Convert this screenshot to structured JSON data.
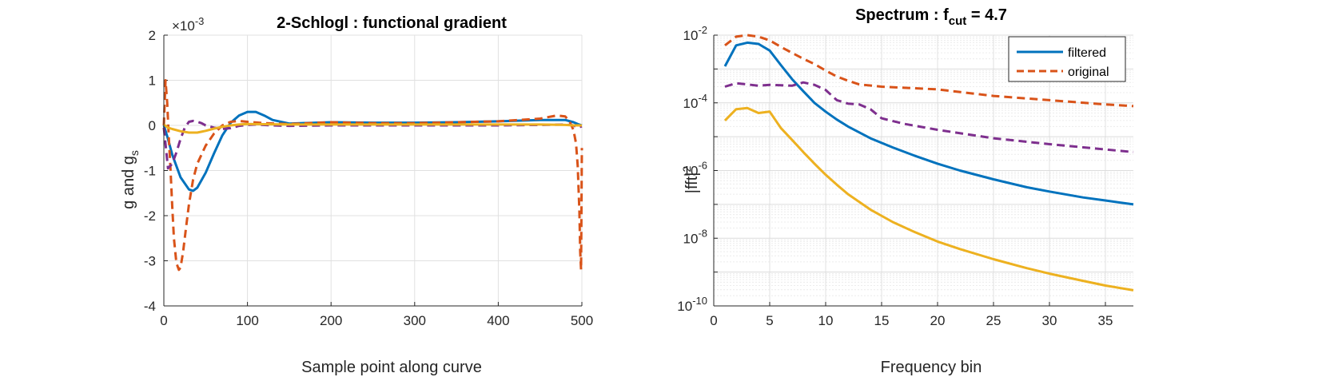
{
  "chart_data": [
    {
      "type": "line",
      "title": "2-Schlogl : functional gradient",
      "xlabel": "Sample point along curve",
      "ylabel": "g and g",
      "ylabel_sub": "s",
      "exponent_label": "×10",
      "exponent_value": "-3",
      "xlim": [
        0,
        500
      ],
      "ylim": [
        -4,
        2
      ],
      "xticks": [
        0,
        100,
        200,
        300,
        400,
        500
      ],
      "xtick_labels": [
        "0",
        "100",
        "200",
        "300",
        "400",
        "500"
      ],
      "yticks": [
        -4,
        -3,
        -2,
        -1,
        0,
        1,
        2
      ],
      "ytick_labels": [
        "-4",
        "-3",
        "-2",
        "-1",
        "0",
        "1",
        "2"
      ],
      "grid": true,
      "series": [
        {
          "color": "#0072BD",
          "style": "solid",
          "x": [
            0,
            5,
            10,
            20,
            30,
            35,
            40,
            50,
            60,
            70,
            80,
            90,
            100,
            110,
            120,
            130,
            150,
            200,
            250,
            300,
            350,
            400,
            450,
            480,
            490,
            495,
            500
          ],
          "y": [
            0,
            -0.3,
            -0.65,
            -1.15,
            -1.42,
            -1.45,
            -1.38,
            -1.05,
            -0.62,
            -0.22,
            0.06,
            0.22,
            0.3,
            0.3,
            0.22,
            0.12,
            0.04,
            0.07,
            0.06,
            0.06,
            0.07,
            0.09,
            0.12,
            0.12,
            0.07,
            0.03,
            0
          ]
        },
        {
          "color": "#D95319",
          "style": "dashed",
          "x": [
            0,
            2,
            4,
            6,
            8,
            10,
            12,
            15,
            18,
            20,
            23,
            27,
            30,
            35,
            40,
            50,
            60,
            70,
            80,
            90,
            100,
            120,
            150,
            200,
            250,
            300,
            350,
            400,
            450,
            470,
            480,
            485,
            490,
            493,
            495,
            497,
            498,
            499,
            500
          ],
          "y": [
            0,
            1.0,
            0.5,
            -0.3,
            -1.0,
            -1.8,
            -2.5,
            -3.05,
            -3.2,
            -3.15,
            -2.8,
            -2.2,
            -1.75,
            -1.2,
            -0.85,
            -0.45,
            -0.18,
            0.0,
            0.08,
            0.1,
            0.08,
            0.05,
            0.03,
            0.07,
            0.05,
            0.05,
            0.07,
            0.09,
            0.15,
            0.22,
            0.2,
            0.1,
            -0.1,
            -0.4,
            -0.9,
            -1.9,
            -2.8,
            -3.2,
            -0.5
          ]
        },
        {
          "color": "#7E2F8E",
          "style": "dashed",
          "x": [
            0,
            5,
            10,
            15,
            20,
            25,
            30,
            35,
            40,
            45,
            50,
            60,
            70,
            80,
            90,
            100,
            110,
            130,
            150,
            200,
            300,
            400,
            450,
            480,
            490,
            495,
            500
          ],
          "y": [
            -0.05,
            -0.95,
            -0.85,
            -0.6,
            -0.3,
            -0.05,
            0.08,
            0.1,
            0.08,
            0.05,
            0.0,
            -0.05,
            -0.08,
            -0.06,
            -0.01,
            0.01,
            0.02,
            0.0,
            -0.01,
            0.0,
            0.0,
            0.0,
            0.01,
            0.02,
            0.0,
            -0.05,
            -0.02
          ]
        },
        {
          "color": "#EDB120",
          "style": "solid",
          "x": [
            0,
            5,
            10,
            20,
            30,
            40,
            50,
            60,
            70,
            80,
            90,
            100,
            150,
            200,
            300,
            400,
            450,
            480,
            490,
            500
          ],
          "y": [
            0.02,
            -0.05,
            -0.08,
            -0.13,
            -0.16,
            -0.16,
            -0.12,
            -0.07,
            -0.03,
            0.0,
            0.02,
            0.03,
            0.02,
            0.02,
            0.02,
            0.02,
            0.02,
            0.01,
            0.0,
            0
          ]
        }
      ]
    },
    {
      "type": "line",
      "title": "Spectrum : f",
      "title_sub": "cut",
      "title_suffix": " = 4.7",
      "xlabel": "Frequency bin",
      "ylabel": "|fft|",
      "ylabel_sup": "2",
      "yscale": "log",
      "xlim": [
        0,
        37.5
      ],
      "ylim": [
        1e-10,
        0.01
      ],
      "xticks": [
        0,
        5,
        10,
        15,
        20,
        25,
        30,
        35
      ],
      "xtick_labels": [
        "0",
        "5",
        "10",
        "15",
        "20",
        "25",
        "30",
        "35"
      ],
      "yticks": [
        -10,
        -8,
        -6,
        -4,
        -2
      ],
      "ytick_base": "10",
      "grid": true,
      "minor_grid": true,
      "legend": {
        "position": "top-right",
        "entries": [
          "filtered",
          "original"
        ]
      },
      "series": [
        {
          "name": "filtered",
          "color": "#0072BD",
          "style": "solid",
          "x": [
            1,
            2,
            3,
            4,
            5,
            6,
            7,
            8,
            9,
            10,
            11,
            12,
            14,
            16,
            18,
            20,
            22,
            25,
            28,
            30,
            33,
            35,
            37.5
          ],
          "y": [
            0.0012,
            0.005,
            0.006,
            0.0055,
            0.0035,
            0.0013,
            0.0005,
            0.00022,
            0.0001,
            5.5e-05,
            3.2e-05,
            2e-05,
            9e-06,
            4.8e-06,
            2.7e-06,
            1.6e-06,
            1e-06,
            5.5e-07,
            3.2e-07,
            2.4e-07,
            1.6e-07,
            1.3e-07,
            1e-07
          ]
        },
        {
          "name": "original",
          "color": "#D95319",
          "style": "dashed",
          "x": [
            1,
            2,
            3,
            4,
            5,
            6,
            7,
            8,
            9,
            10,
            11,
            12,
            13,
            15,
            20,
            25,
            30,
            35,
            37.5
          ],
          "y": [
            0.005,
            0.009,
            0.01,
            0.009,
            0.007,
            0.0045,
            0.003,
            0.002,
            0.0014,
            0.0009,
            0.0006,
            0.00045,
            0.00035,
            0.0003,
            0.00025,
            0.00016,
            0.00012,
            9e-05,
            8e-05
          ]
        },
        {
          "color": "#7E2F8E",
          "style": "dashed",
          "x": [
            1,
            2,
            3,
            4,
            5,
            6,
            7,
            8,
            9,
            10,
            11,
            12,
            13,
            14,
            15,
            17,
            20,
            25,
            30,
            35,
            37.5
          ],
          "y": [
            0.0003,
            0.00038,
            0.00035,
            0.00032,
            0.00034,
            0.00033,
            0.00032,
            0.0004,
            0.00034,
            0.00024,
            0.00012,
            9.5e-05,
            9e-05,
            6.5e-05,
            3.5e-05,
            2.4e-05,
            1.6e-05,
            9e-06,
            6e-06,
            4.2e-06,
            3.5e-06
          ]
        },
        {
          "color": "#EDB120",
          "style": "solid",
          "x": [
            1,
            2,
            3,
            4,
            5,
            6,
            7,
            8,
            9,
            10,
            11,
            12,
            14,
            16,
            18,
            20,
            22,
            25,
            28,
            30,
            33,
            35,
            37.5
          ],
          "y": [
            3e-05,
            6.5e-05,
            7e-05,
            5e-05,
            5.5e-05,
            1.8e-05,
            8e-06,
            3.5e-06,
            1.6e-06,
            7.5e-07,
            3.8e-07,
            2e-07,
            7e-08,
            3e-08,
            1.5e-08,
            8e-09,
            4.8e-09,
            2.4e-09,
            1.3e-09,
            9e-10,
            5.5e-10,
            4e-10,
            2.9e-10
          ]
        }
      ]
    }
  ]
}
